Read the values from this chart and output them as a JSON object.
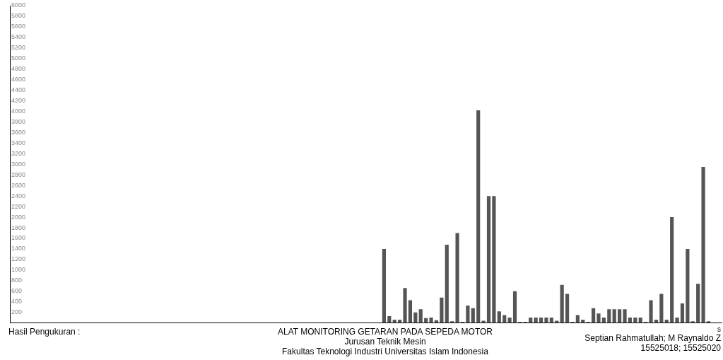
{
  "chart_data": {
    "type": "bar",
    "title": "ALAT MONITORING GETARAN PADA SEPEDA MOTOR",
    "xlabel": "s",
    "annotations": [
      "Hasil Pengukuran :",
      "Jurusan Teknik Mesin",
      "Fakultas Teknologi Industri Universitas Islam Indonesia",
      "Septian Rahmatullah; M Raynaldo Z",
      "15525018; 15525020"
    ],
    "categories": [
      null,
      null,
      null,
      null,
      null,
      null,
      null,
      null,
      null,
      null,
      null,
      null,
      null,
      null,
      null,
      null,
      null,
      null,
      null,
      null,
      null,
      null,
      null,
      null,
      null,
      null,
      null,
      null,
      null,
      null,
      null,
      null,
      null,
      null,
      null,
      null,
      null,
      null,
      null,
      null,
      null,
      null,
      null,
      null,
      null,
      null,
      null,
      null,
      null,
      null,
      null,
      null,
      null,
      null,
      null,
      null,
      null,
      null,
      null,
      null,
      null,
      null,
      null,
      null,
      null,
      null,
      null,
      null,
      null,
      null,
      null,
      null,
      null,
      null,
      null,
      null,
      null,
      null,
      null,
      null,
      null,
      null,
      null,
      null,
      null,
      null,
      null,
      null,
      null,
      null,
      null,
      null,
      null,
      null,
      null,
      null,
      null,
      null,
      null,
      null,
      null,
      null,
      null,
      null,
      null,
      null,
      null,
      null,
      null,
      null,
      null,
      null,
      null,
      null,
      null,
      null,
      null,
      null,
      null,
      null,
      null,
      null,
      null,
      null,
      null,
      null,
      null,
      null,
      null,
      null,
      null,
      null,
      null,
      null,
      null,
      null
    ],
    "values": [
      0,
      0,
      0,
      0,
      0,
      0,
      0,
      0,
      0,
      0,
      0,
      0,
      0,
      0,
      0,
      0,
      0,
      0,
      0,
      0,
      0,
      0,
      0,
      0,
      0,
      0,
      0,
      0,
      0,
      0,
      0,
      0,
      0,
      0,
      0,
      0,
      0,
      0,
      0,
      0,
      0,
      0,
      0,
      0,
      0,
      0,
      0,
      0,
      0,
      0,
      0,
      0,
      0,
      0,
      0,
      0,
      0,
      0,
      0,
      0,
      0,
      0,
      0,
      0,
      0,
      0,
      0,
      0,
      0,
      0,
      0,
      1400,
      130,
      60,
      60,
      660,
      430,
      200,
      260,
      90,
      100,
      50,
      480,
      1480,
      30,
      1700,
      20,
      330,
      280,
      4020,
      40,
      2400,
      2400,
      220,
      150,
      100,
      600,
      20,
      20,
      100,
      100,
      100,
      100,
      100,
      40,
      720,
      550,
      20,
      150,
      60,
      20,
      280,
      180,
      100,
      260,
      260,
      260,
      260,
      100,
      100,
      100,
      20,
      430,
      60,
      550,
      60,
      2000,
      100,
      370,
      1400,
      30,
      740,
      2950,
      30,
      0,
      0
    ],
    "color": "#555555",
    "ylim": [
      0,
      6000
    ],
    "yticks": [
      200,
      400,
      600,
      800,
      1000,
      1200,
      1400,
      1600,
      1800,
      2000,
      2200,
      2400,
      2600,
      2800,
      3000,
      3200,
      3400,
      3600,
      3800,
      4000,
      4200,
      4400,
      4600,
      4800,
      5000,
      5200,
      5400,
      5600,
      5800,
      6000
    ],
    "tick_labels": "y"
  }
}
